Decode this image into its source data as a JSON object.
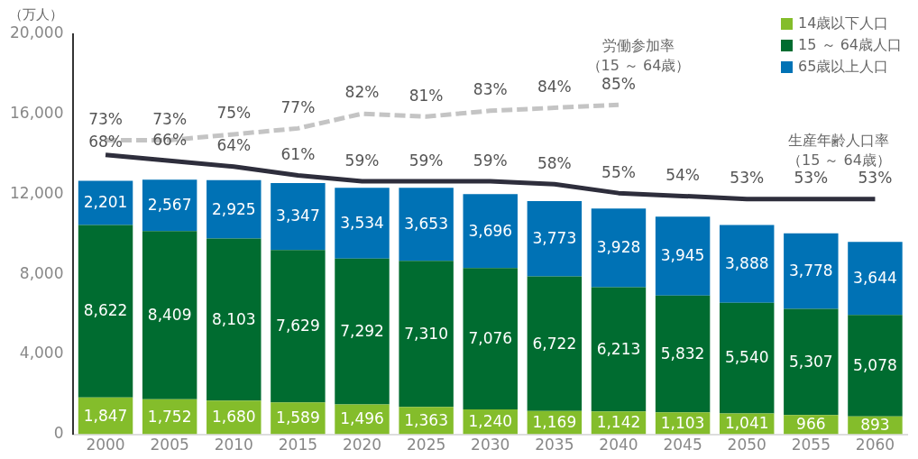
{
  "chart_data": {
    "type": "bar",
    "stacked": true,
    "ylabel": "（万人）",
    "categories": [
      "2000",
      "2005",
      "2010",
      "2015",
      "2020",
      "2025",
      "2030",
      "2035",
      "2040",
      "2045",
      "2050",
      "2055",
      "2060"
    ],
    "ylim": [
      0,
      20000
    ],
    "yticks": [
      {
        "value": 0,
        "label": "0"
      },
      {
        "value": 4000,
        "label": "4,000"
      },
      {
        "value": 8000,
        "label": "8,000"
      },
      {
        "value": 12000,
        "label": "12,000"
      },
      {
        "value": 16000,
        "label": "16,000"
      },
      {
        "value": 20000,
        "label": "20,000"
      }
    ],
    "y2lim": [
      -27,
      109
    ],
    "grid": false,
    "legend": "top right",
    "series": [
      {
        "name": "14歳以下人口",
        "color": "#84bd2b",
        "values": [
          1847,
          1752,
          1680,
          1589,
          1496,
          1363,
          1240,
          1169,
          1142,
          1103,
          1041,
          966,
          893
        ],
        "value_labels": [
          "1,847",
          "1,752",
          "1,680",
          "1,589",
          "1,496",
          "1,363",
          "1,240",
          "1,169",
          "1,142",
          "1,103",
          "1,041",
          "966",
          "893"
        ]
      },
      {
        "name": "15 ～ 64歳人口",
        "color": "#006c30",
        "values": [
          8622,
          8409,
          8103,
          7629,
          7292,
          7310,
          7076,
          6722,
          6213,
          5832,
          5540,
          5307,
          5078
        ],
        "value_labels": [
          "8,622",
          "8,409",
          "8,103",
          "7,629",
          "7,292",
          "7,310",
          "7,076",
          "6,722",
          "6,213",
          "5,832",
          "5,540",
          "5,307",
          "5,078"
        ]
      },
      {
        "name": "65歳以上人口",
        "color": "#0072b5",
        "values": [
          2201,
          2567,
          2925,
          3347,
          3534,
          3653,
          3696,
          3773,
          3928,
          3945,
          3888,
          3778,
          3644
        ],
        "value_labels": [
          "2,201",
          "2,567",
          "2,925",
          "3,347",
          "3,534",
          "3,653",
          "3,696",
          "3,773",
          "3,928",
          "3,945",
          "3,888",
          "3,778",
          "3,644"
        ]
      },
      {
        "name": "労働参加率（15 ～ 64歳）",
        "type": "line",
        "axis": "y2",
        "line_style": "dashed",
        "marker": "none",
        "color": "#c4c4c4",
        "values": [
          73,
          73,
          75,
          77,
          82,
          81,
          83,
          84,
          85,
          null,
          null,
          null,
          null
        ],
        "value_labels": [
          "73%",
          "73%",
          "75%",
          "77%",
          "82%",
          "81%",
          "83%",
          "84%",
          "85%",
          null,
          null,
          null,
          null
        ]
      },
      {
        "name": "生産年齢人口率（15 ～ 64歳）",
        "type": "line",
        "axis": "y2",
        "line_style": "solid",
        "marker": "none",
        "color": "#2e2e3c",
        "values": [
          68,
          66,
          64,
          61,
          59,
          59,
          59,
          58,
          55,
          54,
          53,
          53,
          53
        ],
        "value_labels": [
          "68%",
          "66%",
          "64%",
          "61%",
          "59%",
          "59%",
          "59%",
          "58%",
          "55%",
          "54%",
          "53%",
          "53%",
          "53%"
        ]
      }
    ]
  }
}
